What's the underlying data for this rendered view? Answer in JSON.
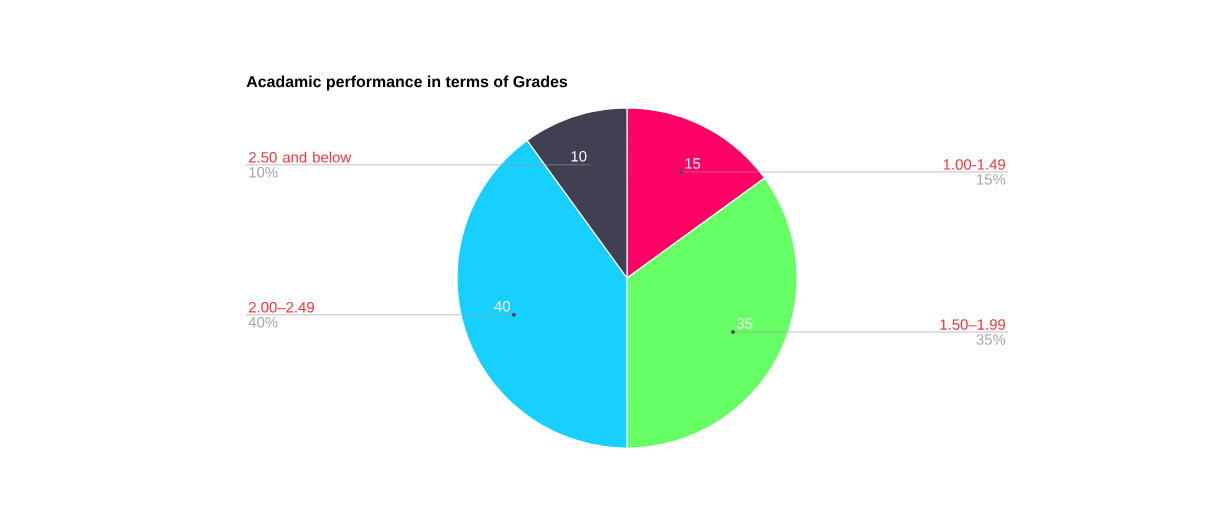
{
  "chart_data": {
    "type": "pie",
    "title": "Acadamic performance in terms of Grades",
    "categories": [
      "1.00-1.49",
      "1.50–1.99",
      "2.00–2.49",
      "2.50 and below"
    ],
    "values": [
      15,
      35,
      40,
      10
    ],
    "colors": [
      "#ff0066",
      "#66ff66",
      "#18d0ff",
      "#413f52"
    ],
    "value_labels": [
      "15",
      "35",
      "40",
      "10"
    ],
    "annotations": [
      "15%",
      "35%",
      "40%",
      "10%"
    ],
    "data_labels": true,
    "legend": false
  }
}
